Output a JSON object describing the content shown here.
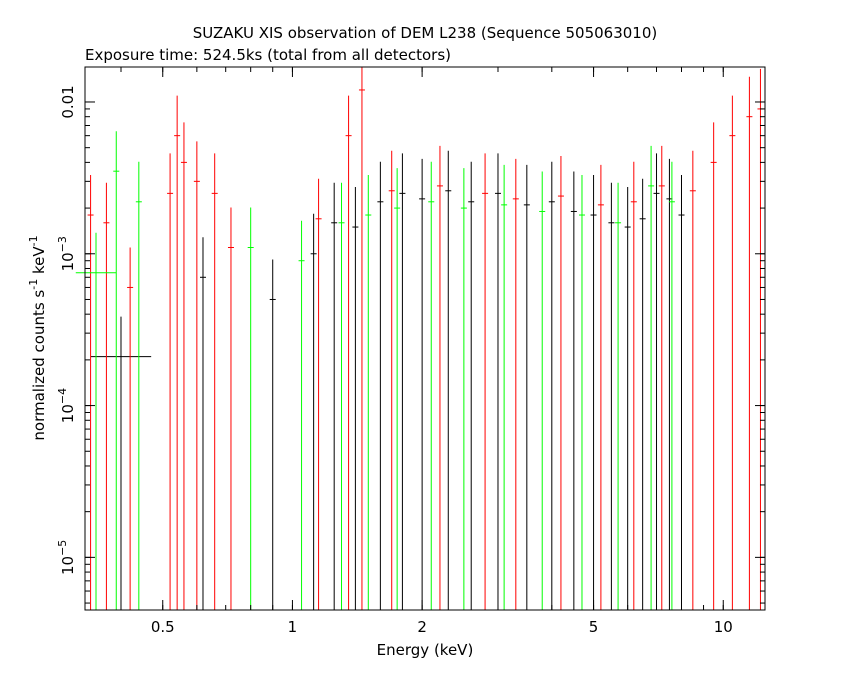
{
  "chart_data": {
    "type": "scatter",
    "title": "SUZAKU XIS observation of DEM L238 (Sequence 505063010)",
    "subtitle": "Exposure time: 524.5ks (total from all detectors)",
    "xlabel": "Energy (keV)",
    "ylabel": "normalized counts s",
    "ylabel_sup1": "-1",
    "ylabel_mid": " keV",
    "ylabel_sup2": "-1",
    "xscale": "log",
    "yscale": "log",
    "xlim": [
      0.33,
      12.5
    ],
    "ylim": [
      4.5e-06,
      0.017
    ],
    "x_ticks": [
      {
        "value": 0.5,
        "label": "0.5"
      },
      {
        "value": 1,
        "label": "1"
      },
      {
        "value": 2,
        "label": "2"
      },
      {
        "value": 5,
        "label": "5"
      },
      {
        "value": 10,
        "label": "10"
      }
    ],
    "y_ticks": [
      {
        "value": 0.01,
        "label": "0.01",
        "sup": ""
      },
      {
        "value": 0.001,
        "label": "10",
        "sup": "−3"
      },
      {
        "value": 0.0001,
        "label": "10",
        "sup": "−4"
      },
      {
        "value": 1e-05,
        "label": "10",
        "sup": "−5"
      }
    ],
    "series": [
      {
        "color": "#000000",
        "points": [
          {
            "x": 0.4,
            "y": 0.00021,
            "dx": 0.07
          },
          {
            "x": 0.62,
            "y": 0.0007
          },
          {
            "x": 0.9,
            "y": 0.0005
          },
          {
            "x": 1.12,
            "y": 0.001
          },
          {
            "x": 1.25,
            "y": 0.0016
          },
          {
            "x": 1.4,
            "y": 0.0015
          },
          {
            "x": 1.6,
            "y": 0.0022
          },
          {
            "x": 1.8,
            "y": 0.0025
          },
          {
            "x": 2.0,
            "y": 0.0023
          },
          {
            "x": 2.3,
            "y": 0.0026
          },
          {
            "x": 2.6,
            "y": 0.0022
          },
          {
            "x": 3.0,
            "y": 0.0025
          },
          {
            "x": 3.5,
            "y": 0.0021
          },
          {
            "x": 4.0,
            "y": 0.0022
          },
          {
            "x": 4.5,
            "y": 0.0019
          },
          {
            "x": 5.0,
            "y": 0.0018
          },
          {
            "x": 5.5,
            "y": 0.0016
          },
          {
            "x": 6.0,
            "y": 0.0015
          },
          {
            "x": 6.5,
            "y": 0.0017
          },
          {
            "x": 7.0,
            "y": 0.0025
          },
          {
            "x": 7.5,
            "y": 0.0023
          },
          {
            "x": 8.0,
            "y": 0.0018
          }
        ]
      },
      {
        "color": "#ff0000",
        "points": [
          {
            "x": 0.34,
            "y": 0.0018
          },
          {
            "x": 0.37,
            "y": 0.0016
          },
          {
            "x": 0.42,
            "y": 0.0006
          },
          {
            "x": 0.52,
            "y": 0.0025
          },
          {
            "x": 0.54,
            "y": 0.006
          },
          {
            "x": 0.56,
            "y": 0.004
          },
          {
            "x": 0.6,
            "y": 0.003
          },
          {
            "x": 0.66,
            "y": 0.0025
          },
          {
            "x": 0.72,
            "y": 0.0011
          },
          {
            "x": 1.15,
            "y": 0.0017
          },
          {
            "x": 1.35,
            "y": 0.006
          },
          {
            "x": 1.45,
            "y": 0.012
          },
          {
            "x": 1.7,
            "y": 0.0026
          },
          {
            "x": 2.2,
            "y": 0.0028
          },
          {
            "x": 2.8,
            "y": 0.0025
          },
          {
            "x": 3.3,
            "y": 0.0023
          },
          {
            "x": 4.2,
            "y": 0.0024
          },
          {
            "x": 5.2,
            "y": 0.0021
          },
          {
            "x": 6.2,
            "y": 0.0022
          },
          {
            "x": 7.2,
            "y": 0.0028
          },
          {
            "x": 8.5,
            "y": 0.0026
          },
          {
            "x": 9.5,
            "y": 0.004
          },
          {
            "x": 10.5,
            "y": 0.006
          },
          {
            "x": 11.5,
            "y": 0.008
          },
          {
            "x": 12.2,
            "y": 0.009
          }
        ]
      },
      {
        "color": "#00ff00",
        "points": [
          {
            "x": 0.35,
            "y": 0.00075,
            "dx": 0.04
          },
          {
            "x": 0.39,
            "y": 0.0035
          },
          {
            "x": 0.44,
            "y": 0.0022
          },
          {
            "x": 0.8,
            "y": 0.0011
          },
          {
            "x": 1.05,
            "y": 0.0009
          },
          {
            "x": 1.3,
            "y": 0.0016
          },
          {
            "x": 1.5,
            "y": 0.0018
          },
          {
            "x": 1.75,
            "y": 0.002
          },
          {
            "x": 2.1,
            "y": 0.0022
          },
          {
            "x": 2.5,
            "y": 0.002
          },
          {
            "x": 3.1,
            "y": 0.0021
          },
          {
            "x": 3.8,
            "y": 0.0019
          },
          {
            "x": 4.7,
            "y": 0.0018
          },
          {
            "x": 5.7,
            "y": 0.0016
          },
          {
            "x": 6.8,
            "y": 0.0028
          },
          {
            "x": 7.6,
            "y": 0.0022
          }
        ]
      }
    ]
  }
}
